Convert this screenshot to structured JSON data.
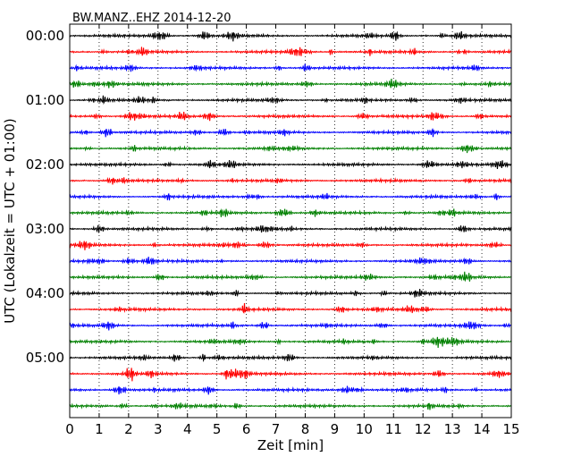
{
  "chart_data": {
    "type": "line",
    "title": "BW.MANZ..EHZ 2014-12-20",
    "xlabel": "Zeit  [min]",
    "ylabel": "UTC (Lokalzeit = UTC + 01:00)",
    "xlim": [
      0,
      15
    ],
    "x_ticks": [
      "0",
      "1",
      "2",
      "3",
      "4",
      "5",
      "6",
      "7",
      "8",
      "9",
      "10",
      "11",
      "12",
      "13",
      "14",
      "15"
    ],
    "y_tick_labels": [
      "00:00",
      "01:00",
      "02:00",
      "03:00",
      "04:00",
      "05:00"
    ],
    "grid": "vertical-dotted",
    "rows_per_hour": 4,
    "row_colors": [
      "#000000",
      "#ff0000",
      "#0000ff",
      "#008000"
    ],
    "rows": [
      {
        "start": "00:00",
        "color": "#000000"
      },
      {
        "start": "00:15",
        "color": "#ff0000"
      },
      {
        "start": "00:30",
        "color": "#0000ff"
      },
      {
        "start": "00:45",
        "color": "#008000"
      },
      {
        "start": "01:00",
        "color": "#000000"
      },
      {
        "start": "01:15",
        "color": "#ff0000"
      },
      {
        "start": "01:30",
        "color": "#0000ff"
      },
      {
        "start": "01:45",
        "color": "#008000"
      },
      {
        "start": "02:00",
        "color": "#000000"
      },
      {
        "start": "02:15",
        "color": "#ff0000"
      },
      {
        "start": "02:30",
        "color": "#0000ff"
      },
      {
        "start": "02:45",
        "color": "#008000"
      },
      {
        "start": "03:00",
        "color": "#000000"
      },
      {
        "start": "03:15",
        "color": "#ff0000"
      },
      {
        "start": "03:30",
        "color": "#0000ff"
      },
      {
        "start": "03:45",
        "color": "#008000"
      },
      {
        "start": "04:00",
        "color": "#000000"
      },
      {
        "start": "04:15",
        "color": "#ff0000"
      },
      {
        "start": "04:30",
        "color": "#0000ff"
      },
      {
        "start": "04:45",
        "color": "#008000"
      },
      {
        "start": "05:00",
        "color": "#000000"
      },
      {
        "start": "05:15",
        "color": "#ff0000"
      },
      {
        "start": "05:30",
        "color": "#0000ff"
      },
      {
        "start": "05:45",
        "color": "#008000"
      }
    ]
  }
}
